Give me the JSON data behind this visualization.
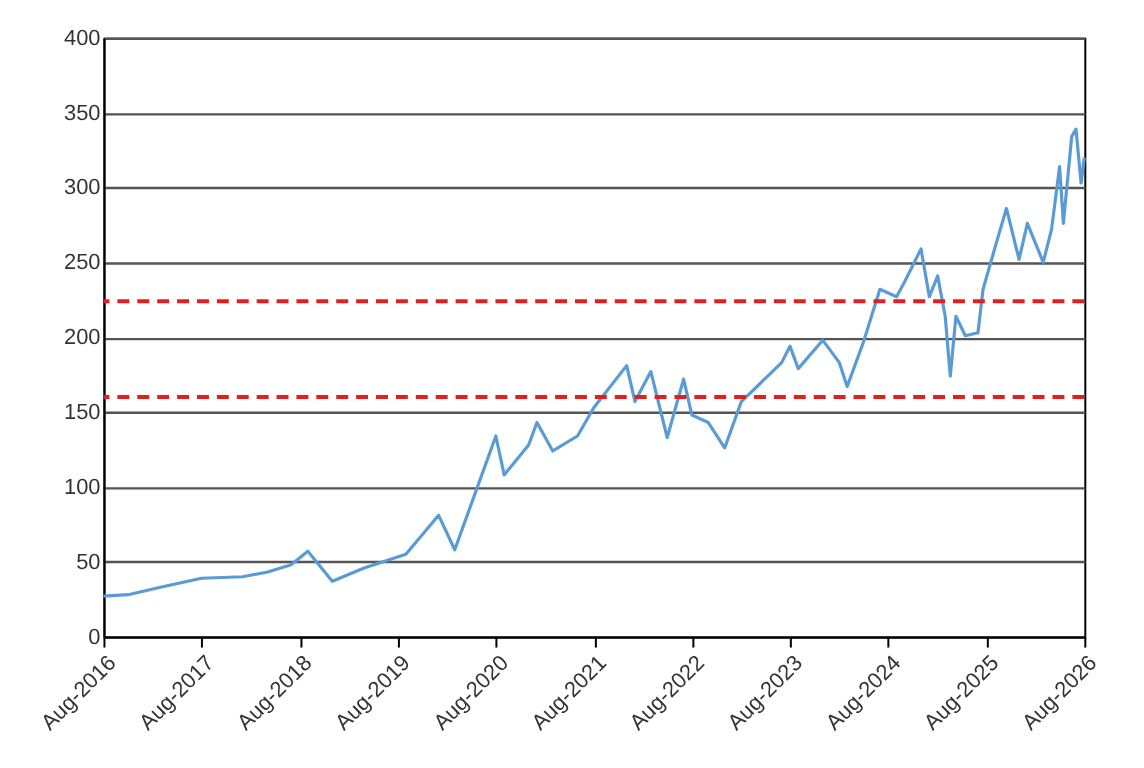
{
  "chart_data": {
    "type": "line",
    "x": [
      "2016-08-01",
      "2016-11-01",
      "2017-03-01",
      "2017-08-01",
      "2018-01-01",
      "2018-04-01",
      "2018-07-01",
      "2018-09-01",
      "2018-12-01",
      "2019-04-01",
      "2019-09-01",
      "2020-01-01",
      "2020-03-01",
      "2020-08-01",
      "2020-09-01",
      "2020-12-01",
      "2021-01-01",
      "2021-03-01",
      "2021-06-01",
      "2021-08-01",
      "2021-12-01",
      "2022-01-01",
      "2022-03-01",
      "2022-05-01",
      "2022-07-01",
      "2022-08-01",
      "2022-10-01",
      "2022-12-01",
      "2023-02-01",
      "2023-07-01",
      "2023-08-01",
      "2023-09-01",
      "2023-12-01",
      "2024-02-01",
      "2024-03-01",
      "2024-05-01",
      "2024-07-01",
      "2024-09-01",
      "2024-10-01",
      "2024-12-01",
      "2025-01-01",
      "2025-02-01",
      "2025-03-01",
      "2025-03-20",
      "2025-04-10",
      "2025-05-15",
      "2025-07-01",
      "2025-07-20",
      "2025-09-01",
      "2025-10-15",
      "2025-12-01",
      "2026-01-01",
      "2026-03-01",
      "2026-04-01",
      "2026-05-01",
      "2026-05-15",
      "2026-06-15",
      "2026-07-01",
      "2026-07-20",
      "2026-08-01"
    ],
    "series": [
      {
        "color": "#5b9bd5",
        "values": [
          27,
          28,
          33,
          39,
          40,
          43,
          48,
          57,
          37,
          46,
          55,
          81,
          58,
          134,
          108,
          128,
          143,
          124,
          134,
          153,
          181,
          157,
          177,
          133,
          172,
          148,
          143,
          126,
          157,
          183,
          194,
          179,
          198,
          183,
          167,
          197,
          232,
          227,
          237,
          259,
          227,
          241,
          214,
          174,
          214,
          201,
          203,
          232,
          259,
          286,
          252,
          276,
          250,
          272,
          314,
          276,
          334,
          339,
          303,
          320
        ]
      }
    ],
    "xlim": [
      "2016-08-01",
      "2026-08-01"
    ],
    "xticks": [
      {
        "value": "2016-08-01",
        "label": "Aug-2016"
      },
      {
        "value": "2017-08-01",
        "label": "Aug-2017"
      },
      {
        "value": "2018-08-01",
        "label": "Aug-2018"
      },
      {
        "value": "2019-08-01",
        "label": "Aug-2019"
      },
      {
        "value": "2020-08-01",
        "label": "Aug-2020"
      },
      {
        "value": "2021-08-01",
        "label": "Aug-2021"
      },
      {
        "value": "2022-08-01",
        "label": "Aug-2022"
      },
      {
        "value": "2023-08-01",
        "label": "Aug-2023"
      },
      {
        "value": "2024-08-01",
        "label": "Aug-2024"
      },
      {
        "value": "2025-08-01",
        "label": "Aug-2025"
      },
      {
        "value": "2026-08-01",
        "label": "Aug-2026"
      }
    ],
    "ylim": [
      0,
      400
    ],
    "yticks": [
      0,
      50,
      100,
      150,
      200,
      250,
      300,
      350,
      400
    ],
    "ref_lines": [
      {
        "axis": "y",
        "value": 224,
        "color": "#e02020",
        "line_style": "dashed"
      },
      {
        "axis": "y",
        "value": 160,
        "color": "#e02020",
        "line_style": "dashed"
      }
    ],
    "grid": "y",
    "marker": "none",
    "line_style": "solid"
  }
}
